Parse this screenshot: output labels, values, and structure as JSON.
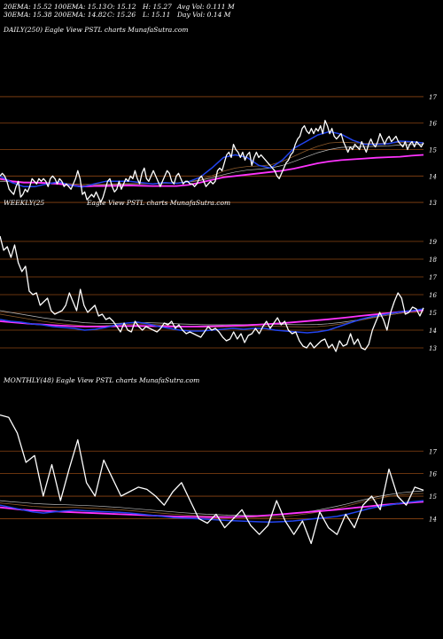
{
  "header": {
    "row1": [
      "20EMA: 15.52",
      "100EMA: 15.13",
      "O: 15.12",
      "H: 15.27",
      "Avg Vol: 0.111 M"
    ],
    "row2": [
      "30EMA: 15.38",
      "200EMA: 14.82",
      "C: 15.26",
      "L: 15.11",
      "Day Vol: 0.14  M"
    ]
  },
  "colors": {
    "background": "#000000",
    "price": "#ffffff",
    "grid": "#8b4513",
    "ema_fast": "#2244ee",
    "ema_slow": "#ff33ff",
    "ema_mid": "#8b5a2b",
    "ema_light": "#bbbbbb"
  },
  "chart_data": [
    {
      "type": "line",
      "title": "DAILY(250) Eagle  View  PSTL  charts MunafaSutra.com",
      "ylim": [
        12.6,
        17.3
      ],
      "yticks": [
        13,
        14,
        15,
        16,
        17
      ],
      "series": [
        {
          "key": "price",
          "values": [
            14.0,
            14.1,
            14.0,
            13.8,
            13.5,
            13.4,
            13.3,
            13.6,
            13.8,
            13.2,
            13.3,
            13.5,
            13.4,
            13.6,
            13.9,
            13.8,
            13.7,
            13.9,
            13.8,
            13.9,
            13.8,
            13.6,
            13.9,
            14.0,
            13.9,
            13.7,
            13.9,
            13.8,
            13.6,
            13.7,
            13.6,
            13.5,
            13.7,
            13.9,
            14.2,
            13.9,
            13.3,
            13.4,
            13.1,
            13.2,
            13.3,
            13.2,
            13.4,
            13.2,
            13.0,
            13.2,
            13.5,
            13.8,
            13.9,
            13.6,
            13.4,
            13.5,
            13.8,
            13.5,
            13.7,
            13.9,
            13.8,
            14.0,
            13.9,
            14.2,
            13.9,
            13.7,
            14.1,
            14.3,
            13.9,
            13.8,
            14.0,
            14.2,
            14.0,
            13.8,
            13.6,
            13.8,
            14.0,
            14.2,
            14.1,
            13.8,
            13.7,
            14.0,
            14.1,
            13.9,
            13.7,
            13.8,
            13.8,
            13.7,
            13.7,
            13.6,
            13.7,
            13.9,
            14.0,
            13.8,
            13.6,
            13.7,
            13.8,
            13.7,
            13.8,
            14.2,
            14.3,
            14.2,
            14.5,
            14.8,
            14.9,
            14.7,
            15.2,
            15.0,
            14.9,
            14.7,
            14.9,
            14.6,
            14.8,
            14.9,
            14.4,
            14.7,
            14.9,
            14.7,
            14.8,
            14.7,
            14.6,
            14.5,
            14.4,
            14.3,
            14.2,
            14.0,
            13.9,
            14.1,
            14.3,
            14.5,
            14.6,
            14.8,
            14.9,
            15.2,
            15.4,
            15.5,
            15.8,
            15.9,
            15.7,
            15.6,
            15.8,
            15.6,
            15.8,
            15.7,
            15.9,
            15.6,
            16.1,
            15.9,
            15.6,
            15.8,
            15.5,
            15.4,
            15.5,
            15.6,
            15.3,
            15.1,
            14.9,
            15.1,
            15.0,
            15.2,
            15.1,
            15.0,
            15.3,
            15.1,
            14.9,
            15.2,
            15.4,
            15.2,
            15.1,
            15.3,
            15.6,
            15.4,
            15.2,
            15.4,
            15.5,
            15.3,
            15.4,
            15.5,
            15.3,
            15.2,
            15.1,
            15.3,
            15.0,
            15.2,
            15.3,
            15.1,
            15.3,
            15.2,
            15.1,
            15.26
          ]
        },
        {
          "key": "ema_fast",
          "values": [
            14.0,
            13.75,
            13.6,
            13.6,
            13.7,
            13.78,
            13.65,
            13.58,
            13.7,
            13.8,
            13.8,
            13.8,
            13.75,
            13.7,
            13.75,
            13.72,
            13.78,
            13.95,
            14.3,
            14.7,
            14.8,
            14.7,
            14.4,
            14.3,
            14.6,
            15.05,
            15.3,
            15.55,
            15.68,
            15.58,
            15.35,
            15.2,
            15.2,
            15.22,
            15.32,
            15.3,
            15.25
          ]
        },
        {
          "key": "ema_slow",
          "values": [
            13.9,
            13.8,
            13.75,
            13.75,
            13.73,
            13.7,
            13.65,
            13.6,
            13.62,
            13.62,
            13.63,
            13.64,
            13.63,
            13.62,
            13.62,
            13.62,
            13.66,
            13.75,
            13.85,
            13.95,
            14.0,
            14.05,
            14.1,
            14.15,
            14.2,
            14.28,
            14.38,
            14.48,
            14.55,
            14.6,
            14.63,
            14.66,
            14.69,
            14.71,
            14.73,
            14.77,
            14.8
          ]
        },
        {
          "key": "ema_mid",
          "values": [
            13.85,
            13.82,
            13.78,
            13.75,
            13.74,
            13.73,
            13.7,
            13.68,
            13.68,
            13.69,
            13.7,
            13.71,
            13.71,
            13.71,
            13.72,
            13.74,
            13.78,
            13.86,
            14.0,
            14.18,
            14.3,
            14.36,
            14.38,
            14.42,
            14.55,
            14.75,
            14.95,
            15.12,
            15.25,
            15.28,
            15.26,
            15.24,
            15.23,
            15.24,
            15.27,
            15.28,
            15.27
          ]
        },
        {
          "key": "ema_light",
          "values": [
            13.8,
            13.78,
            13.76,
            13.74,
            13.72,
            13.71,
            13.7,
            13.68,
            13.67,
            13.67,
            13.68,
            13.69,
            13.7,
            13.71,
            13.72,
            13.74,
            13.77,
            13.83,
            13.93,
            14.05,
            14.15,
            14.22,
            14.26,
            14.3,
            14.4,
            14.55,
            14.72,
            14.88,
            15.0,
            15.08,
            15.1,
            15.11,
            15.12,
            15.14,
            15.17,
            15.19,
            15.2
          ]
        }
      ]
    },
    {
      "type": "line",
      "title": "WEEKLY(25",
      "subtitle": "Eagle  View  PSTL  charts MunafaSutra.com",
      "ylim": [
        12.6,
        19.6
      ],
      "yticks": [
        13,
        14,
        15,
        16,
        17,
        18,
        19
      ],
      "series": [
        {
          "key": "price",
          "values": [
            19.3,
            18.5,
            18.7,
            18.1,
            18.8,
            17.8,
            17.3,
            17.6,
            16.2,
            16.0,
            16.1,
            15.4,
            15.6,
            15.8,
            15.1,
            14.9,
            15.0,
            15.1,
            15.4,
            16.1,
            15.6,
            15.1,
            16.3,
            15.4,
            15.0,
            15.2,
            15.4,
            14.8,
            14.9,
            14.6,
            14.7,
            14.5,
            14.2,
            13.9,
            14.4,
            14.0,
            13.9,
            14.5,
            14.2,
            14.0,
            14.2,
            14.1,
            14.0,
            13.9,
            14.1,
            14.4,
            14.3,
            14.5,
            14.1,
            14.3,
            14.0,
            13.8,
            13.9,
            13.8,
            13.7,
            13.6,
            13.9,
            14.2,
            14.0,
            14.1,
            13.9,
            13.6,
            13.4,
            13.5,
            13.9,
            13.5,
            13.8,
            13.3,
            13.7,
            13.8,
            14.1,
            13.8,
            14.2,
            14.5,
            14.1,
            14.4,
            14.7,
            14.3,
            14.5,
            14.0,
            13.8,
            13.9,
            13.4,
            13.1,
            13.0,
            13.3,
            13.0,
            13.2,
            13.4,
            13.5,
            13.0,
            13.2,
            12.8,
            13.4,
            13.1,
            13.2,
            13.8,
            13.2,
            13.5,
            13.0,
            12.9,
            13.2,
            14.0,
            14.5,
            15.0,
            14.6,
            14.0,
            15.0,
            15.6,
            16.1,
            15.8,
            14.9,
            15.0,
            15.3,
            15.2,
            14.8,
            15.26
          ]
        },
        {
          "key": "ema_fast",
          "values": [
            14.6,
            14.5,
            14.45,
            14.35,
            14.3,
            14.2,
            14.15,
            14.1,
            14.0,
            14.05,
            14.15,
            14.3,
            14.4,
            14.45,
            14.35,
            14.2,
            14.1,
            14.0,
            13.95,
            13.95,
            14.0,
            14.05,
            14.1,
            14.05,
            14.1,
            14.1,
            14.0,
            13.95,
            13.9,
            13.85,
            13.9,
            14.0,
            14.2,
            14.4,
            14.6,
            14.75,
            14.85,
            14.95,
            15.05,
            15.1,
            15.2
          ]
        },
        {
          "key": "ema_slow",
          "values": [
            14.5,
            14.45,
            14.4,
            14.35,
            14.32,
            14.28,
            14.25,
            14.22,
            14.2,
            14.2,
            14.21,
            14.22,
            14.23,
            14.24,
            14.23,
            14.22,
            14.21,
            14.2,
            14.2,
            14.21,
            14.22,
            14.23,
            14.25,
            14.27,
            14.3,
            14.33,
            14.37,
            14.41,
            14.46,
            14.51,
            14.56,
            14.61,
            14.67,
            14.73,
            14.8,
            14.86,
            14.92,
            14.98,
            15.04,
            15.08,
            15.12
          ]
        },
        {
          "key": "ema_mid",
          "values": [
            14.9,
            14.8,
            14.7,
            14.6,
            14.5,
            14.42,
            14.35,
            14.3,
            14.25,
            14.24,
            14.25,
            14.28,
            14.32,
            14.35,
            14.34,
            14.3,
            14.26,
            14.22,
            14.19,
            14.17,
            14.17,
            14.18,
            14.2,
            14.2,
            14.22,
            14.23,
            14.22,
            14.2,
            14.19,
            14.18,
            14.2,
            14.25,
            14.33,
            14.43,
            14.55,
            14.67,
            14.78,
            14.88,
            14.97,
            15.04,
            15.1
          ]
        },
        {
          "key": "ema_light",
          "values": [
            15.1,
            15.0,
            14.9,
            14.8,
            14.7,
            14.62,
            14.55,
            14.48,
            14.42,
            14.39,
            14.38,
            14.38,
            14.4,
            14.42,
            14.42,
            14.4,
            14.38,
            14.35,
            14.33,
            14.31,
            14.3,
            14.3,
            14.31,
            14.31,
            14.32,
            14.33,
            14.33,
            14.32,
            14.31,
            14.31,
            14.32,
            14.36,
            14.42,
            14.5,
            14.59,
            14.69,
            14.79,
            14.88,
            14.97,
            15.04,
            15.1
          ]
        }
      ]
    },
    {
      "type": "line",
      "title": "MONTHLY(48) Eagle  View  PSTL  charts MunafaSutra.com",
      "ylim": [
        12.6,
        18.9
      ],
      "yticks": [
        14,
        15,
        16,
        17
      ],
      "series": [
        {
          "key": "price",
          "values": [
            18.6,
            18.5,
            17.8,
            16.5,
            16.8,
            15.0,
            16.4,
            14.8,
            16.2,
            17.5,
            15.6,
            15.0,
            16.6,
            15.8,
            15.0,
            15.2,
            15.4,
            15.3,
            15.0,
            14.6,
            15.2,
            15.6,
            14.8,
            14.0,
            13.8,
            14.2,
            13.6,
            14.0,
            14.4,
            13.7,
            13.3,
            13.7,
            14.8,
            13.9,
            13.3,
            13.9,
            12.9,
            14.3,
            13.6,
            13.3,
            14.2,
            13.6,
            14.6,
            15.0,
            14.4,
            16.2,
            15.0,
            14.6,
            15.4,
            15.26
          ]
        },
        {
          "key": "ema_fast",
          "values": [
            14.6,
            14.5,
            14.4,
            14.3,
            14.25,
            14.3,
            14.35,
            14.38,
            14.35,
            14.32,
            14.3,
            14.28,
            14.25,
            14.2,
            14.15,
            14.1,
            14.05,
            14.02,
            14.0,
            13.98,
            13.95,
            13.92,
            13.9,
            13.88,
            13.86,
            13.85,
            13.87,
            13.9,
            13.95,
            14.0,
            14.05,
            14.1,
            14.2,
            14.32,
            14.45,
            14.55,
            14.62,
            14.7,
            14.75,
            14.8
          ]
        },
        {
          "key": "ema_slow",
          "values": [
            14.5,
            14.45,
            14.4,
            14.37,
            14.35,
            14.33,
            14.3,
            14.28,
            14.26,
            14.24,
            14.22,
            14.2,
            14.18,
            14.16,
            14.14,
            14.12,
            14.1,
            14.09,
            14.08,
            14.07,
            14.07,
            14.07,
            14.08,
            14.1,
            14.13,
            14.16,
            14.2,
            14.24,
            14.28,
            14.32,
            14.36,
            14.4,
            14.45,
            14.5,
            14.55,
            14.6,
            14.64,
            14.68,
            14.72,
            14.75
          ]
        },
        {
          "key": "ema_mid",
          "values": [
            14.7,
            14.65,
            14.6,
            14.55,
            14.52,
            14.5,
            14.5,
            14.5,
            14.48,
            14.46,
            14.43,
            14.4,
            14.36,
            14.32,
            14.28,
            14.24,
            14.2,
            14.17,
            14.14,
            14.12,
            14.1,
            14.08,
            14.07,
            14.06,
            14.06,
            14.07,
            14.1,
            14.14,
            14.2,
            14.27,
            14.35,
            14.45,
            14.57,
            14.7,
            14.82,
            14.92,
            15.0,
            15.06,
            15.1,
            15.12
          ]
        },
        {
          "key": "ema_light",
          "values": [
            14.8,
            14.75,
            14.72,
            14.68,
            14.65,
            14.63,
            14.62,
            14.6,
            14.58,
            14.56,
            14.53,
            14.5,
            14.46,
            14.42,
            14.38,
            14.34,
            14.3,
            14.26,
            14.23,
            14.2,
            14.18,
            14.16,
            14.15,
            14.14,
            14.14,
            14.16,
            14.19,
            14.23,
            14.29,
            14.36,
            14.45,
            14.55,
            14.66,
            14.78,
            14.9,
            15.0,
            15.08,
            15.15,
            15.2,
            15.24
          ]
        }
      ]
    }
  ]
}
